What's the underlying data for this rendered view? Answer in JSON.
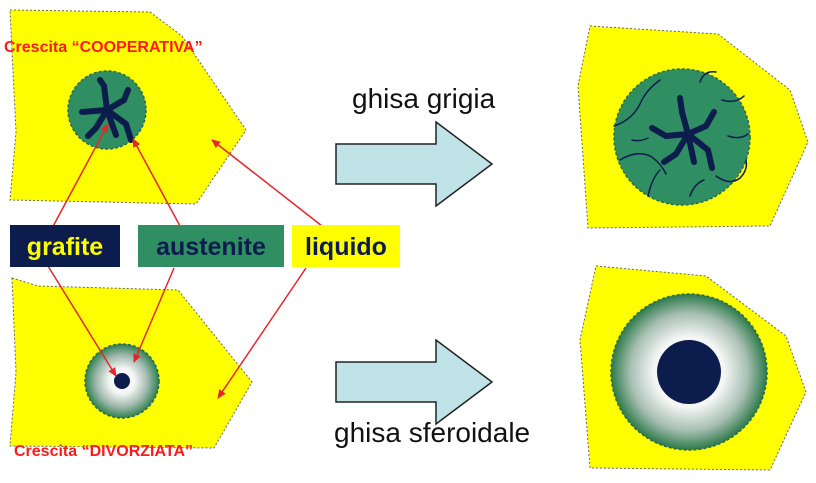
{
  "title_partial": "",
  "labels": {
    "cooperative": "Crescita “COOPERATIVA”",
    "divorced": "Crescita “DIVORZIATA”",
    "grey_iron": "ghisa grigia",
    "nodular_iron": "ghisa sferoidale"
  },
  "legend": {
    "graphite": "grafite",
    "austenite": "austenite",
    "liquid": "liquido"
  },
  "colors": {
    "liquid": "#ffff00",
    "austenite": "#2f8f63",
    "graphite": "#0c1c4c",
    "arrow_fill": "#bfe3e6",
    "pointer": "#e8242b",
    "label_red": "#ff1a1a"
  }
}
